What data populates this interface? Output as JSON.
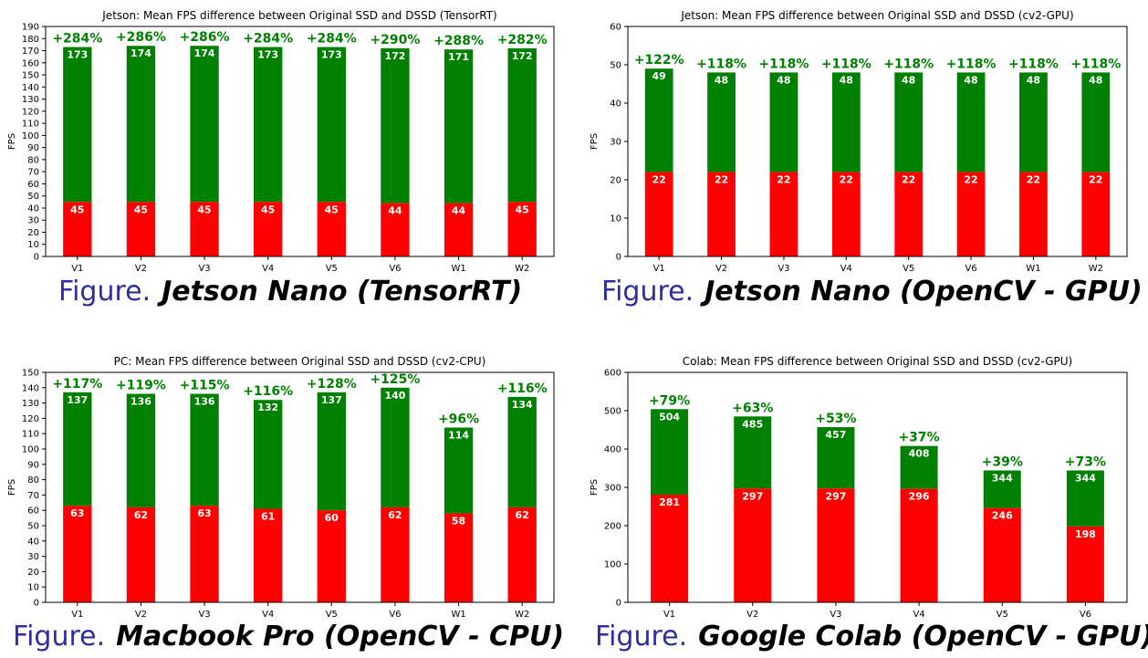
{
  "figure_prefix": "Figure.",
  "colors": {
    "base": "#ff0000",
    "gain": "#008000",
    "gain_label": "#008000",
    "bar_label": "#ffffff"
  },
  "chart_data": [
    {
      "type": "bar",
      "stacked": true,
      "title": "Jetson: Mean FPS difference between Original SSD and DSSD (TensorRT)",
      "ylabel": "FPS",
      "ylim": [
        0,
        190
      ],
      "yticks": [
        0,
        10,
        20,
        30,
        40,
        50,
        60,
        70,
        80,
        90,
        100,
        110,
        120,
        130,
        140,
        150,
        160,
        170,
        180,
        190
      ],
      "categories": [
        "V1",
        "V2",
        "V3",
        "V4",
        "V5",
        "V6",
        "W1",
        "W2"
      ],
      "base_values": [
        45,
        45,
        45,
        45,
        45,
        44,
        44,
        45
      ],
      "total_values": [
        173,
        174,
        174,
        173,
        173,
        172,
        171,
        172
      ],
      "gain_labels": [
        "+284%",
        "+286%",
        "+286%",
        "+284%",
        "+284%",
        "+290%",
        "+288%",
        "+282%"
      ],
      "caption": "Jetson Nano (TensorRT)"
    },
    {
      "type": "bar",
      "stacked": true,
      "title": "Jetson: Mean FPS difference between Original SSD and DSSD (cv2-GPU)",
      "ylabel": "FPS",
      "ylim": [
        0,
        60
      ],
      "yticks": [
        0,
        10,
        20,
        30,
        40,
        50,
        60
      ],
      "categories": [
        "V1",
        "V2",
        "V3",
        "V4",
        "V5",
        "V6",
        "W1",
        "W2"
      ],
      "base_values": [
        22,
        22,
        22,
        22,
        22,
        22,
        22,
        22
      ],
      "total_values": [
        49,
        48,
        48,
        48,
        48,
        48,
        48,
        48
      ],
      "gain_labels": [
        "+122%",
        "+118%",
        "+118%",
        "+118%",
        "+118%",
        "+118%",
        "+118%",
        "+118%"
      ],
      "caption": "Jetson Nano (OpenCV - GPU)"
    },
    {
      "type": "bar",
      "stacked": true,
      "title": "PC: Mean FPS difference between Original SSD and DSSD (cv2-CPU)",
      "ylabel": "FPS",
      "ylim": [
        0,
        150
      ],
      "yticks": [
        0,
        10,
        20,
        30,
        40,
        50,
        60,
        70,
        80,
        90,
        100,
        110,
        120,
        130,
        140,
        150
      ],
      "categories": [
        "V1",
        "V2",
        "V3",
        "V4",
        "V5",
        "V6",
        "W1",
        "W2"
      ],
      "base_values": [
        63,
        62,
        63,
        61,
        60,
        62,
        58,
        62
      ],
      "total_values": [
        137,
        136,
        136,
        132,
        137,
        140,
        114,
        134
      ],
      "gain_labels": [
        "+117%",
        "+119%",
        "+115%",
        "+116%",
        "+128%",
        "+125%",
        "+96%",
        "+116%"
      ],
      "caption": "Macbook Pro (OpenCV - CPU)"
    },
    {
      "type": "bar",
      "stacked": true,
      "title": "Colab: Mean FPS difference between Original SSD and DSSD (cv2-GPU)",
      "ylabel": "FPS",
      "ylim": [
        0,
        600
      ],
      "yticks": [
        0,
        100,
        200,
        300,
        400,
        500,
        600
      ],
      "categories": [
        "V1",
        "V2",
        "V3",
        "V4",
        "V5",
        "V6"
      ],
      "base_values": [
        281,
        297,
        297,
        296,
        246,
        198
      ],
      "total_values": [
        504,
        485,
        457,
        408,
        344,
        344
      ],
      "gain_labels": [
        "+79%",
        "+63%",
        "+53%",
        "+37%",
        "+39%",
        "+73%"
      ],
      "caption": "Google Colab (OpenCV - GPU)"
    }
  ]
}
